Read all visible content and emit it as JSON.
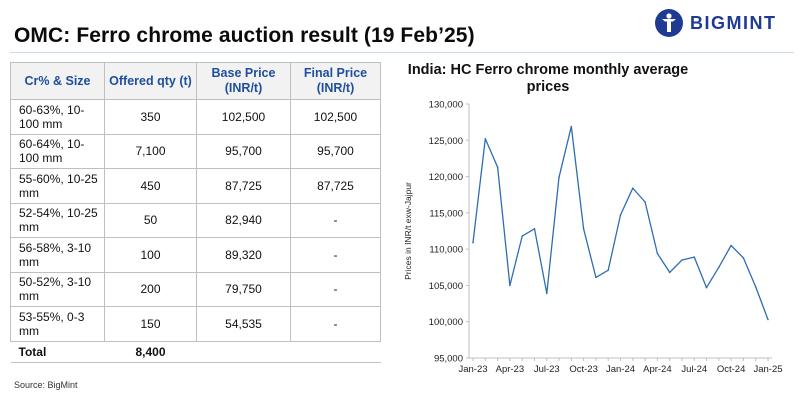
{
  "page": {
    "title": "OMC: Ferro chrome auction result (19 Feb’25)",
    "source": "Source: BigMint",
    "brand": "BIGMINT",
    "brand_color": "#1f3a93",
    "header_color": "#1f4f9c"
  },
  "table": {
    "headers": [
      "Cr% & Size",
      "Offered qty (t)",
      "Base Price (INR/t)",
      "Final Price (INR/t)"
    ],
    "rows": [
      [
        "60-63%, 10-100 mm",
        "350",
        "102,500",
        "102,500"
      ],
      [
        "60-64%, 10-100 mm",
        "7,100",
        "95,700",
        "95,700"
      ],
      [
        "55-60%, 10-25 mm",
        "450",
        "87,725",
        "87,725"
      ],
      [
        "52-54%, 10-25 mm",
        "50",
        "82,940",
        "-"
      ],
      [
        "56-58%, 3-10 mm",
        "100",
        "89,320",
        "-"
      ],
      [
        "50-52%, 3-10 mm",
        "200",
        "79,750",
        "-"
      ],
      [
        "53-55%, 0-3 mm",
        "150",
        "54,535",
        "-"
      ]
    ],
    "total": [
      "Total",
      "8,400",
      "",
      ""
    ]
  },
  "chart_data": {
    "type": "line",
    "title_lines": [
      "India: HC Ferro chrome monthly average",
      "prices"
    ],
    "ylabel": "Prices in INR/t exw-Jajpur",
    "xlabel": "",
    "ylim": [
      95000,
      130000
    ],
    "yticks": [
      95000,
      100000,
      105000,
      110000,
      115000,
      120000,
      125000,
      130000
    ],
    "ytick_labels": [
      "95,000",
      "100,000",
      "105,000",
      "110,000",
      "115,000",
      "120,000",
      "125,000",
      "130,000"
    ],
    "x": [
      "Jan-23",
      "Feb-23",
      "Mar-23",
      "Apr-23",
      "May-23",
      "Jun-23",
      "Jul-23",
      "Aug-23",
      "Sep-23",
      "Oct-23",
      "Nov-23",
      "Dec-23",
      "Jan-24",
      "Feb-24",
      "Mar-24",
      "Apr-24",
      "May-24",
      "Jun-24",
      "Jul-24",
      "Aug-24",
      "Sep-24",
      "Oct-24",
      "Nov-24",
      "Dec-24",
      "Jan-25"
    ],
    "xtick_labels": [
      "Jan-23",
      "Apr-23",
      "Jul-23",
      "Oct-23",
      "Jan-24",
      "Apr-24",
      "Jul-24",
      "Oct-24",
      "Jan-25"
    ],
    "series": [
      {
        "color": "#2e6db4",
        "values": [
          110900,
          125200,
          121300,
          105000,
          111800,
          112800,
          103900,
          119900,
          126900,
          112800,
          106100,
          107100,
          114700,
          118400,
          116500,
          109400,
          106800,
          108500,
          108900,
          104700,
          107500,
          110500,
          108800,
          104800,
          100300
        ]
      }
    ],
    "grid": false,
    "legend": "none"
  }
}
